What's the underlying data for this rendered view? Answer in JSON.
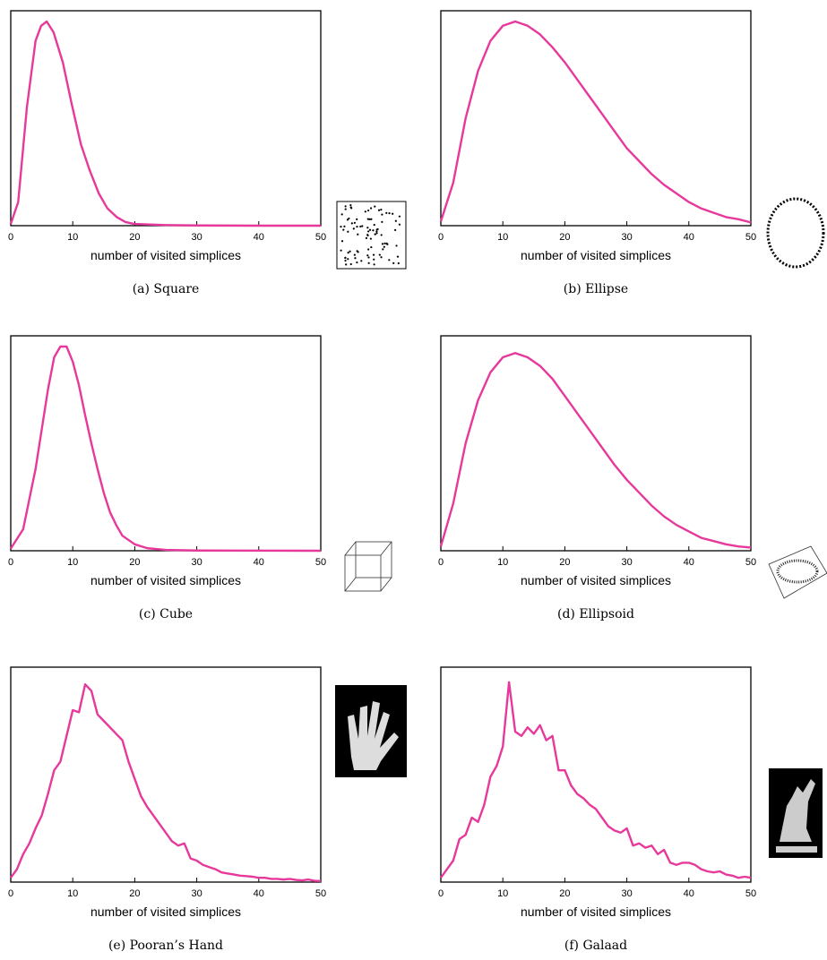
{
  "chart_data": [
    {
      "type": "line",
      "caption": "(a) Square",
      "x_label": "number of visited simplices",
      "color": "#e6399b",
      "x": [
        0,
        1.2,
        2.6,
        4.0,
        4.9,
        5.8,
        6.9,
        8.4,
        9.8,
        11.3,
        12.7,
        14.2,
        15.6,
        17.1,
        18.5,
        19.9,
        25,
        30,
        40,
        50
      ],
      "values": [
        0.008,
        0.11,
        0.55,
        0.86,
        0.93,
        0.95,
        0.9,
        0.76,
        0.57,
        0.38,
        0.26,
        0.15,
        0.08,
        0.04,
        0.017,
        0.008,
        0.003,
        0.001,
        0,
        0
      ],
      "xlim": [
        0,
        50
      ],
      "ylim": [
        0,
        1
      ],
      "xticks": [
        0,
        10,
        20,
        30,
        40,
        50
      ]
    },
    {
      "type": "line",
      "caption": "(b) Ellipse",
      "x_label": "number of visited simplices",
      "color": "#e6399b",
      "x": [
        0,
        2,
        4,
        6,
        8,
        10,
        12,
        14,
        16,
        18,
        20,
        22,
        24,
        26,
        28,
        30,
        32,
        34,
        36,
        38,
        40,
        42,
        44,
        46,
        48,
        50
      ],
      "values": [
        0.02,
        0.2,
        0.5,
        0.72,
        0.86,
        0.93,
        0.95,
        0.93,
        0.89,
        0.83,
        0.76,
        0.68,
        0.6,
        0.52,
        0.44,
        0.36,
        0.3,
        0.24,
        0.19,
        0.15,
        0.11,
        0.08,
        0.06,
        0.04,
        0.03,
        0.015
      ],
      "xlim": [
        0,
        50
      ],
      "ylim": [
        0,
        1
      ],
      "xticks": [
        0,
        10,
        20,
        30,
        40,
        50
      ]
    },
    {
      "type": "line",
      "caption": "(c) Cube",
      "x_label": "number of visited simplices",
      "color": "#e6399b",
      "x": [
        0,
        2,
        4,
        6,
        7,
        8,
        9,
        10,
        11,
        12,
        13,
        14,
        15,
        16,
        17,
        18,
        20,
        22,
        25,
        30,
        50
      ],
      "values": [
        0.01,
        0.1,
        0.38,
        0.75,
        0.9,
        0.95,
        0.95,
        0.88,
        0.77,
        0.63,
        0.5,
        0.38,
        0.27,
        0.18,
        0.12,
        0.07,
        0.03,
        0.012,
        0.004,
        0.001,
        0
      ],
      "xlim": [
        0,
        50
      ],
      "ylim": [
        0,
        1
      ],
      "xticks": [
        0,
        10,
        20,
        30,
        40,
        50
      ]
    },
    {
      "type": "line",
      "caption": "(d) Ellipsoid",
      "x_label": "number of visited simplices",
      "color": "#e6399b",
      "x": [
        0,
        2,
        4,
        6,
        8,
        10,
        12,
        14,
        16,
        18,
        20,
        22,
        24,
        26,
        28,
        30,
        32,
        34,
        36,
        38,
        40,
        42,
        44,
        46,
        48,
        50
      ],
      "values": [
        0.02,
        0.22,
        0.5,
        0.7,
        0.83,
        0.9,
        0.92,
        0.9,
        0.86,
        0.8,
        0.72,
        0.64,
        0.56,
        0.48,
        0.4,
        0.33,
        0.27,
        0.21,
        0.16,
        0.12,
        0.09,
        0.06,
        0.045,
        0.03,
        0.02,
        0.015
      ],
      "xlim": [
        0,
        50
      ],
      "ylim": [
        0,
        1
      ],
      "xticks": [
        0,
        10,
        20,
        30,
        40,
        50
      ]
    },
    {
      "type": "line",
      "caption": "(e) Pooran’s Hand",
      "x_label": "number of visited simplices",
      "color": "#e6399b",
      "x": [
        0,
        1,
        2,
        3,
        4,
        5,
        6,
        7,
        8,
        9,
        10,
        11,
        12,
        13,
        14,
        15,
        16,
        17,
        18,
        19,
        20,
        21,
        22,
        23,
        24,
        25,
        26,
        27,
        28,
        29,
        30,
        31,
        32,
        33,
        34,
        35,
        36,
        37,
        38,
        39,
        40,
        41,
        42,
        43,
        44,
        45,
        46,
        47,
        48,
        49,
        50
      ],
      "values": [
        0.02,
        0.06,
        0.13,
        0.18,
        0.25,
        0.31,
        0.41,
        0.52,
        0.56,
        0.68,
        0.8,
        0.79,
        0.92,
        0.89,
        0.78,
        0.75,
        0.72,
        0.69,
        0.66,
        0.56,
        0.48,
        0.4,
        0.35,
        0.31,
        0.27,
        0.23,
        0.19,
        0.17,
        0.18,
        0.11,
        0.1,
        0.08,
        0.07,
        0.06,
        0.045,
        0.04,
        0.035,
        0.03,
        0.028,
        0.025,
        0.02,
        0.02,
        0.015,
        0.015,
        0.012,
        0.015,
        0.01,
        0.008,
        0.012,
        0.006,
        0.005
      ],
      "xlim": [
        0,
        50
      ],
      "ylim": [
        0,
        1
      ],
      "xticks": [
        0,
        10,
        20,
        30,
        40,
        50
      ]
    },
    {
      "type": "line",
      "caption": "(f) Galaad",
      "x_label": "number of visited simplices",
      "color": "#e6399b",
      "x": [
        0,
        1,
        2,
        3,
        4,
        5,
        6,
        7,
        8,
        9,
        10,
        11,
        12,
        13,
        14,
        15,
        16,
        17,
        18,
        19,
        20,
        21,
        22,
        23,
        24,
        25,
        26,
        27,
        28,
        29,
        30,
        31,
        32,
        33,
        34,
        35,
        36,
        37,
        38,
        39,
        40,
        41,
        42,
        43,
        44,
        45,
        46,
        47,
        48,
        49,
        50
      ],
      "values": [
        0.02,
        0.06,
        0.1,
        0.2,
        0.22,
        0.3,
        0.28,
        0.36,
        0.49,
        0.54,
        0.63,
        0.93,
        0.7,
        0.68,
        0.72,
        0.69,
        0.73,
        0.66,
        0.68,
        0.52,
        0.52,
        0.45,
        0.41,
        0.39,
        0.36,
        0.34,
        0.3,
        0.26,
        0.24,
        0.23,
        0.25,
        0.17,
        0.18,
        0.16,
        0.17,
        0.13,
        0.15,
        0.09,
        0.08,
        0.09,
        0.09,
        0.08,
        0.06,
        0.05,
        0.045,
        0.05,
        0.035,
        0.03,
        0.02,
        0.025,
        0.02
      ],
      "xlim": [
        0,
        50
      ],
      "ylim": [
        0,
        1
      ],
      "xticks": [
        0,
        10,
        20,
        30,
        40,
        50
      ]
    }
  ]
}
